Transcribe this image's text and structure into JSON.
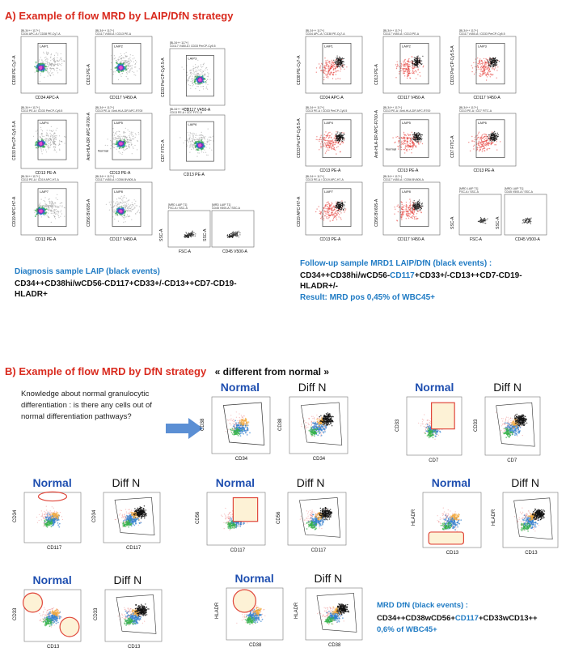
{
  "sectionA": {
    "title": "A) Example of flow MRD by LAIP/DfN strategy",
    "diag_caption": "Diagnosis sample LAIP (black events)",
    "diag_pheno": "CD34++CD38hi/wCD56-CD117+CD33+/-CD13++CD7-CD19-HLADR+",
    "fu_caption": "Follow-up sample MRD1 LAIP/DfN  (black events) :",
    "fu_pheno_a": "CD34++CD38hi/wCD56-",
    "fu_pheno_b": "CD117",
    "fu_pheno_c": "+CD33+/-CD13++CD7-CD19-HLADR+/-",
    "fu_result": "Result: MRD pos 0,45% of WBC45+",
    "panel_headers": [
      "[BL34++ 117+]\nCD34 APC-A / CD38 PE-Cy7-A",
      "[BL34++ 117+]\nCD117 V450-A / CD13 PE-A",
      "[BL34++ 117+]\nCD117 V450-A / CD33 PerCP-Cy5.5",
      "[BL34++ 117+]\nCD13 PE-A / CD33 PerCP-Cy5.5",
      "[BL34++ 117+]\nCD13 PE-A / Anti-HLA-DR APC-R700",
      "[BL34++ 117+]\nCD13 PE-A / CD7 FITC-A",
      "[BL34++ 117+]\nCD13 PE-A / CD19 APC-H7-A",
      "[BL34++ 117+]\nCD117 V450-A / CD56 BV605-A",
      "[MRD LAIP T1]\nFSC-A / SSC-A",
      "[MRD LAIP T1]\nCD45 V500-A / SSC-A"
    ],
    "gates": [
      "LAIP1",
      "LAIP2",
      "LAIP3",
      "LAIP4",
      "LAIP5",
      "LAIP6",
      "LAIP7",
      "LAIP8"
    ],
    "normal_label": "Normal",
    "xlabels": [
      "CD34 APC-A",
      "CD117 V450-A",
      "CD117 V450-A",
      "CD13 PE-A",
      "CD13 PE-A",
      "CD13 PE-A",
      "CD13 PE-A",
      "CD117 V450-A",
      "FSC-A",
      "CD45 V500-A"
    ],
    "ylabels": [
      "CD38 PE-Cy7-A",
      "CD13 PE-A",
      "CD33 PerCP-Cy5.5-A",
      "CD33 PerCP-Cy5.5-A",
      "Anti-HLA-DR APC-R700-A",
      "CD7 FITC-A",
      "CD19 APC-H7-A",
      "CD56 BV605-A",
      "SSC-A",
      "SSC-A"
    ]
  },
  "sectionB": {
    "title": "B) Example of flow MRD by DfN strategy",
    "subtitle": "« different from normal »",
    "question": "Knowledge about normal granulocytic differentiation : is there any cells out of normal differentiation pathways?",
    "normal": "Normal",
    "diff": "Diff N",
    "pairs": [
      {
        "x": "CD34",
        "y": "CD38"
      },
      {
        "x": "CD7",
        "y": "CD33"
      },
      {
        "x": "CD117",
        "y": "CD34"
      },
      {
        "x": "CD117",
        "y": "CD56"
      },
      {
        "x": "CD13",
        "y": "HLADR"
      },
      {
        "x": "CD13",
        "y": "CD33"
      },
      {
        "x": "CD38",
        "y": "HLADR"
      }
    ],
    "mrd_caption": "MRD DfN  (black events) :",
    "mrd_a": "CD34++CD38wCD56+",
    "mrd_b": "CD117",
    "mrd_c": "+CD33wCD13++",
    "mrd_result": "0,6% of WBC45+"
  },
  "colors": {
    "red": "#d92a1e",
    "blue": "#1f4fb0",
    "cyan": "#1f7bc4",
    "gate_fill": "#fdf2d6",
    "gate_stroke": "#e0473b"
  }
}
